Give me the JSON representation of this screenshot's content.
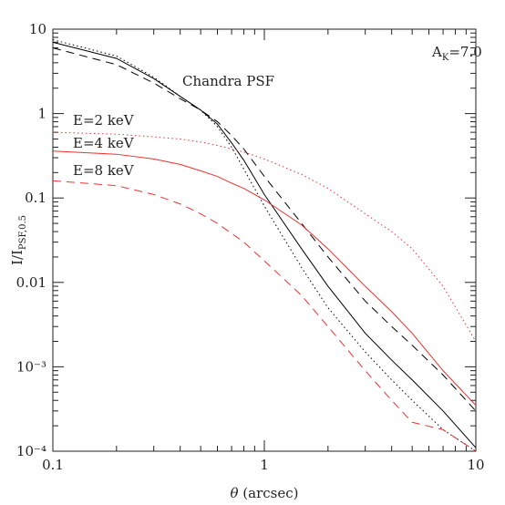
{
  "chart_data": {
    "type": "line",
    "xlabel": {
      "symbol": "θ",
      "text": " (arcsec)"
    },
    "ylabel": {
      "main": "I/I",
      "sub": "PSF,0.5"
    },
    "annotations": [
      {
        "main": "A",
        "sub": "K",
        "rest": "=7.0"
      },
      {
        "main": "Chandra PSF"
      }
    ],
    "log_x": true,
    "log_y": true,
    "xlim": [
      0.1,
      10
    ],
    "ylim": [
      0.0001,
      10
    ],
    "xticks": [
      0.1,
      1,
      10
    ],
    "yticks": [
      {
        "value": 0.0001,
        "label": "10⁻⁴"
      },
      {
        "value": 0.001,
        "label": "10⁻³"
      },
      0.01,
      0.1,
      1,
      10
    ],
    "xminor": [
      0.2,
      0.3,
      0.4,
      0.5,
      0.6,
      0.7,
      0.8,
      0.9,
      2,
      3,
      4,
      5,
      6,
      7,
      8,
      9
    ],
    "yminor": [
      0.0002,
      0.0003,
      0.0004,
      0.0005,
      0.0006,
      0.0007,
      0.0008,
      0.0009,
      0.002,
      0.003,
      0.004,
      0.005,
      0.006,
      0.007,
      0.008,
      0.009,
      0.02,
      0.03,
      0.04,
      0.05,
      0.06,
      0.07,
      0.08,
      0.09,
      0.2,
      0.3,
      0.4,
      0.5,
      0.6,
      0.7,
      0.8,
      0.9,
      2,
      3,
      4,
      5,
      6,
      7,
      8,
      9
    ],
    "x": [
      0.1,
      0.2,
      0.3,
      0.4,
      0.5,
      0.6,
      0.7,
      0.8,
      1,
      1.5,
      2,
      3,
      4,
      5,
      7,
      10
    ],
    "series": [
      {
        "color": "#000000",
        "dash": "solid",
        "values": [
          7,
          4.5,
          2.6,
          1.6,
          1.1,
          0.75,
          0.45,
          0.28,
          0.11,
          0.025,
          0.009,
          0.0025,
          0.0012,
          0.0007,
          0.0003,
          0.00011
        ]
      },
      {
        "color": "#000000",
        "dash": "dotted",
        "values": [
          7.5,
          4.8,
          2.7,
          1.6,
          1.1,
          0.7,
          0.4,
          0.22,
          0.08,
          0.015,
          0.005,
          0.0015,
          0.0007,
          0.0004,
          0.00018,
          0.0001
        ]
      },
      {
        "color": "#000000",
        "dash": "dashed",
        "values": [
          6,
          3.8,
          2.3,
          1.5,
          1.1,
          0.8,
          0.55,
          0.38,
          0.18,
          0.05,
          0.02,
          0.006,
          0.003,
          0.0018,
          0.0008,
          0.0003
        ]
      },
      {
        "name": "E=2 keV",
        "color": "#ee3030",
        "dash": "dotted",
        "values": [
          0.6,
          0.57,
          0.53,
          0.5,
          0.46,
          0.42,
          0.38,
          0.35,
          0.29,
          0.19,
          0.13,
          0.065,
          0.04,
          0.025,
          0.009,
          0.002
        ]
      },
      {
        "name": "E=4 keV",
        "color": "#ee3030",
        "dash": "solid",
        "values": [
          0.36,
          0.33,
          0.29,
          0.25,
          0.21,
          0.18,
          0.15,
          0.13,
          0.095,
          0.048,
          0.025,
          0.009,
          0.0045,
          0.0025,
          0.0009,
          0.00035
        ]
      },
      {
        "name": "E=8 keV",
        "color": "#ee3030",
        "dash": "dashed",
        "values": [
          0.16,
          0.14,
          0.11,
          0.085,
          0.065,
          0.05,
          0.038,
          0.03,
          0.018,
          0.007,
          0.003,
          0.0009,
          0.0004,
          0.00022,
          0.00018,
          0.0001
        ]
      }
    ]
  }
}
